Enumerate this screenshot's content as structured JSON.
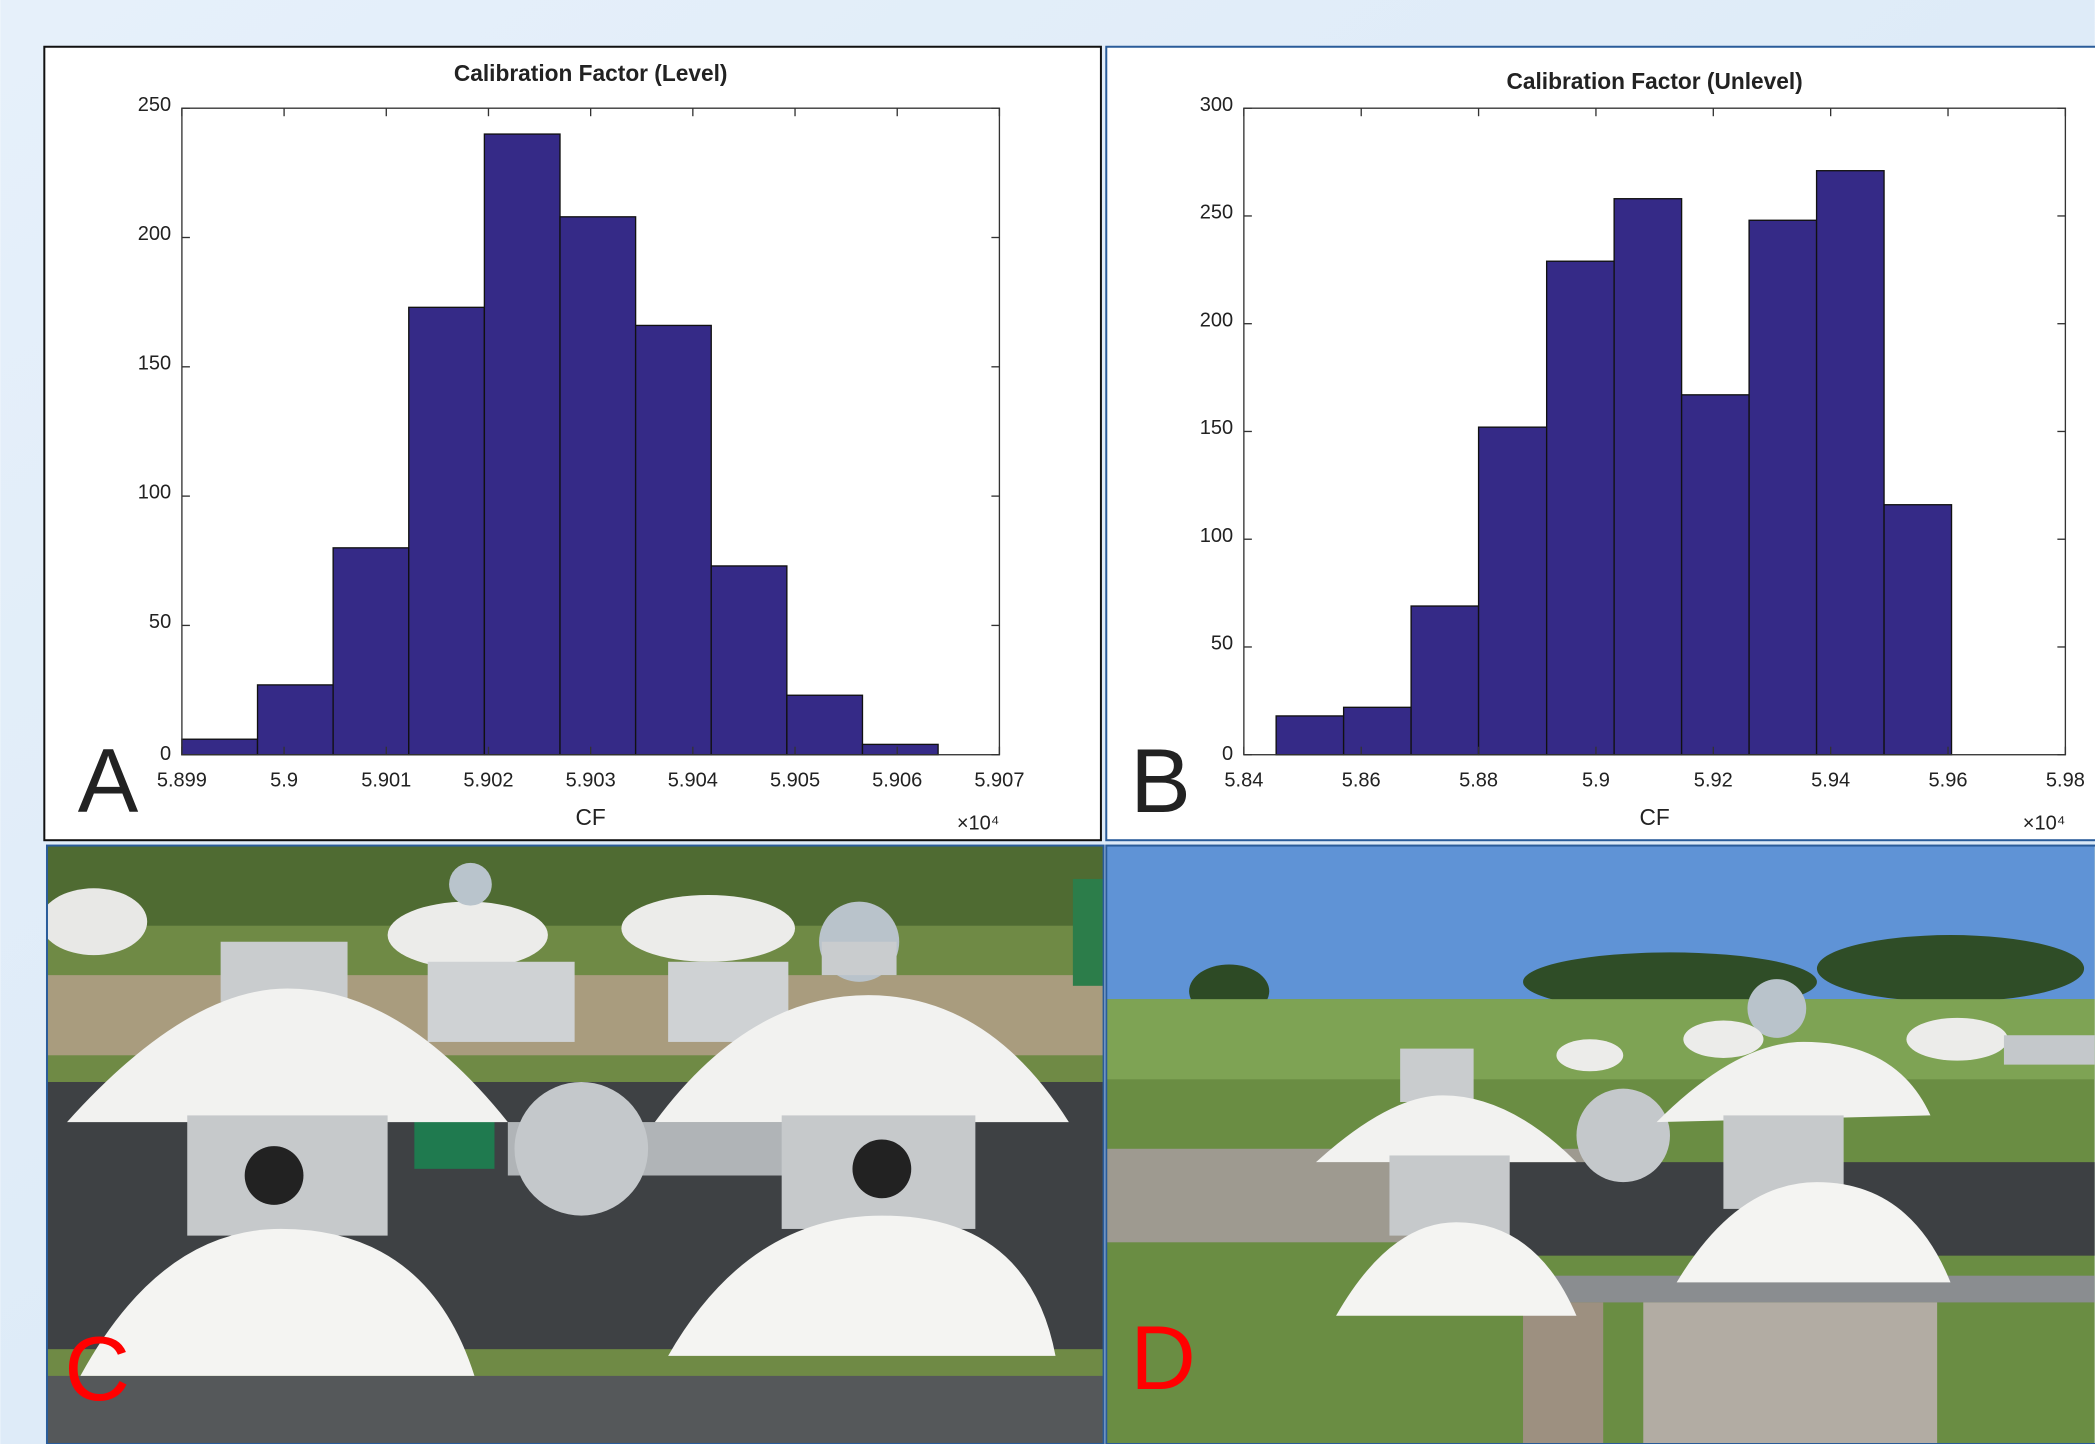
{
  "chart_data": [
    {
      "type": "histogram",
      "title": "Calibration Factor (Level)",
      "x_label": "CF",
      "x_multiplier": "×10⁴",
      "bins": [
        5.899,
        5.89974,
        5.90048,
        5.90122,
        5.90196,
        5.9027,
        5.90344,
        5.90418,
        5.90492,
        5.90566,
        5.9064
      ],
      "values": [
        6,
        27,
        80,
        173,
        240,
        208,
        166,
        73,
        23,
        4
      ],
      "color": "#352a87",
      "xlim": [
        5.899,
        5.907
      ],
      "xticks": [
        5.899,
        5.9,
        5.901,
        5.902,
        5.903,
        5.904,
        5.905,
        5.906,
        5.907
      ],
      "ylim": [
        0,
        250
      ],
      "yticks": [
        0,
        50,
        100,
        150,
        200,
        250
      ],
      "grid": false
    },
    {
      "type": "histogram",
      "title": "Calibration Factor (Unlevel)",
      "x_label": "CF",
      "x_multiplier": "×10⁴",
      "bins": [
        5.8455,
        5.857,
        5.8685,
        5.88,
        5.8916,
        5.9031,
        5.9146,
        5.9261,
        5.9376,
        5.9491,
        5.9606
      ],
      "values": [
        18,
        22,
        69,
        152,
        229,
        258,
        167,
        248,
        271,
        116
      ],
      "color": "#352a87",
      "xlim": [
        5.84,
        5.98
      ],
      "xticks": [
        5.84,
        5.86,
        5.88,
        5.9,
        5.92,
        5.94,
        5.96,
        5.98
      ],
      "ylim": [
        0,
        300
      ],
      "yticks": [
        0,
        50,
        100,
        150,
        200,
        250,
        300
      ],
      "grid": false
    }
  ],
  "panel_labels": [
    "A",
    "B",
    "C",
    "D"
  ]
}
